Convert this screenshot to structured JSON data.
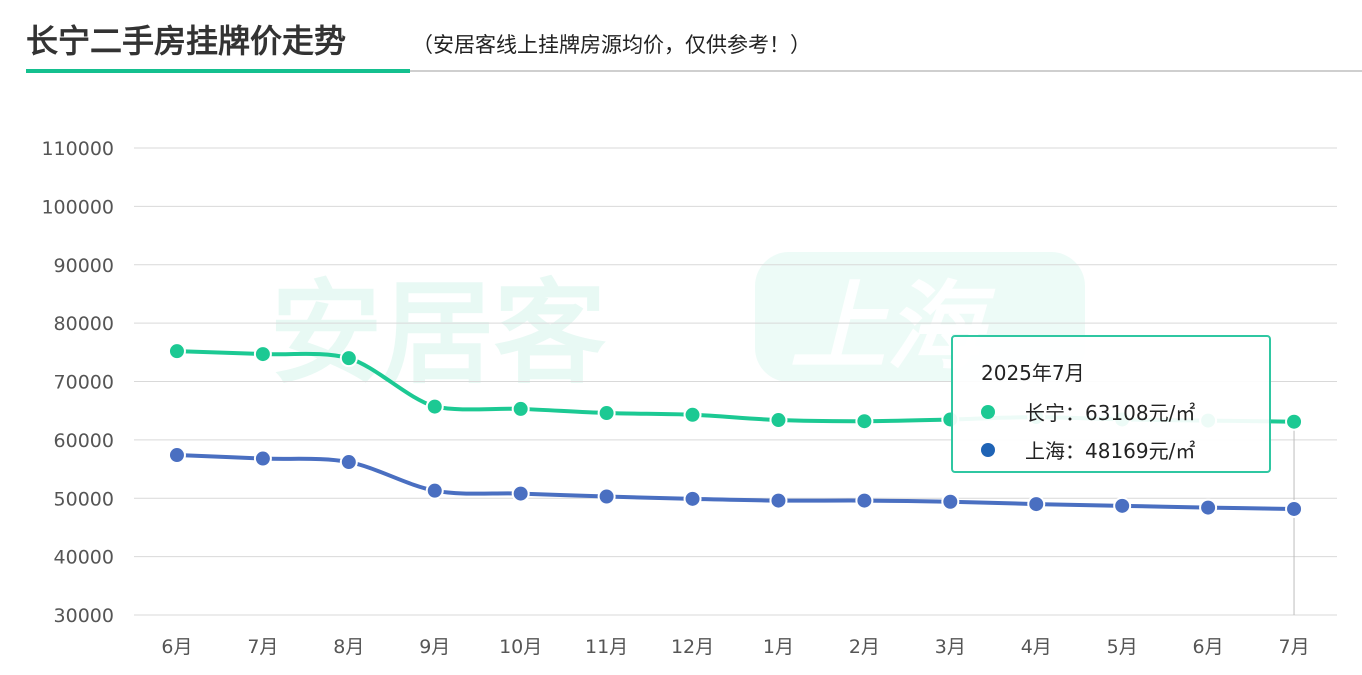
{
  "header": {
    "title": "长宁二手房挂牌价走势",
    "subtitle": "（安居客线上挂牌房源均价，仅供参考！）"
  },
  "watermark": {
    "brand": "安居客",
    "city": "上海"
  },
  "colors": {
    "changning": "#1cc993",
    "shanghai": "#4a6fc1",
    "accent": "#14c08f",
    "tooltip_border": "#2fc7a2"
  },
  "chart_data": {
    "type": "line",
    "title": "长宁二手房挂牌价走势",
    "categories": [
      "6月",
      "7月",
      "8月",
      "9月",
      "10月",
      "11月",
      "12月",
      "1月",
      "2月",
      "3月",
      "4月",
      "5月",
      "6月",
      "7月"
    ],
    "ylim": [
      30000,
      110000
    ],
    "yticks": [
      30000,
      40000,
      50000,
      60000,
      70000,
      80000,
      90000,
      100000,
      110000
    ],
    "grid": true,
    "series": [
      {
        "name": "长宁",
        "color": "#1cc993",
        "values": [
          75200,
          74700,
          74000,
          65700,
          65300,
          64600,
          64300,
          63400,
          63200,
          63500,
          63900,
          63500,
          63300,
          63108
        ]
      },
      {
        "name": "上海",
        "color": "#4a6fc1",
        "values": [
          57400,
          56800,
          56200,
          51300,
          50800,
          50300,
          49900,
          49600,
          49600,
          49400,
          49000,
          48700,
          48400,
          48169
        ]
      }
    ],
    "tooltip": {
      "title": "2025年7月",
      "index": 13,
      "rows": [
        {
          "name": "长宁",
          "value": "63108",
          "unit": "元/㎡",
          "color": "#1cc993"
        },
        {
          "name": "上海",
          "value": "48169",
          "unit": "元/㎡",
          "color": "#1f63b5"
        }
      ],
      "separator": "："
    }
  }
}
